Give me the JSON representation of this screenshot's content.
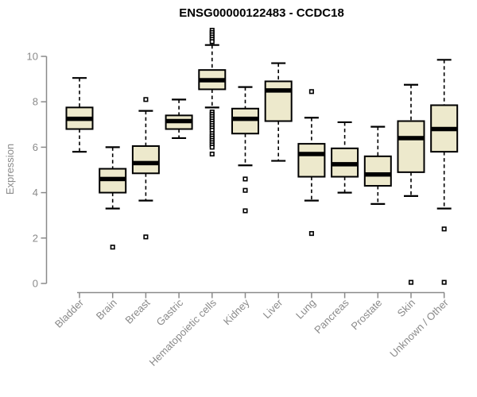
{
  "title": "ENSG00000122483 - CCDC18",
  "chart_data": {
    "type": "box",
    "title": "ENSG00000122483 - CCDC18",
    "xlabel": "",
    "ylabel": "Expression",
    "ylim": [
      0,
      10
    ],
    "yticks": [
      0,
      2,
      4,
      6,
      8,
      10
    ],
    "grid": false,
    "legend": "none",
    "categories": [
      "Bladder",
      "Brain",
      "Breast",
      "Gastric",
      "Hematopoietic cells",
      "Kidney",
      "Liver",
      "Lung",
      "Pancreas",
      "Prostate",
      "Skin",
      "Unknown / Other"
    ],
    "series": [
      {
        "name": "Bladder",
        "whisker_low": 5.8,
        "q1": 6.8,
        "median": 7.25,
        "q3": 7.75,
        "whisker_high": 9.05,
        "outliers": []
      },
      {
        "name": "Brain",
        "whisker_low": 3.3,
        "q1": 4.0,
        "median": 4.6,
        "q3": 5.05,
        "whisker_high": 6.0,
        "outliers": [
          1.6
        ]
      },
      {
        "name": "Breast",
        "whisker_low": 3.65,
        "q1": 4.85,
        "median": 5.3,
        "q3": 6.05,
        "whisker_high": 7.6,
        "outliers": [
          8.1,
          2.05
        ]
      },
      {
        "name": "Gastric",
        "whisker_low": 6.4,
        "q1": 6.8,
        "median": 7.15,
        "q3": 7.4,
        "whisker_high": 8.1,
        "outliers": []
      },
      {
        "name": "Hematopoietic cells",
        "whisker_low": 7.75,
        "q1": 8.55,
        "median": 8.95,
        "q3": 9.4,
        "whisker_high": 10.5,
        "outliers": [
          11.15,
          11.05,
          10.95,
          10.85,
          10.75,
          10.65,
          7.55,
          7.45,
          7.35,
          7.25,
          7.15,
          7.05,
          6.95,
          6.85,
          6.75,
          6.6,
          6.5,
          6.4,
          6.3,
          6.2,
          6.1,
          6.0,
          5.7
        ]
      },
      {
        "name": "Kidney",
        "whisker_low": 5.2,
        "q1": 6.6,
        "median": 7.25,
        "q3": 7.7,
        "whisker_high": 8.65,
        "outliers": [
          4.6,
          4.1,
          3.2
        ]
      },
      {
        "name": "Liver",
        "whisker_low": 5.4,
        "q1": 7.15,
        "median": 8.5,
        "q3": 8.9,
        "whisker_high": 9.7,
        "outliers": []
      },
      {
        "name": "Lung",
        "whisker_low": 3.65,
        "q1": 4.7,
        "median": 5.7,
        "q3": 6.15,
        "whisker_high": 7.3,
        "outliers": [
          8.45,
          2.2
        ]
      },
      {
        "name": "Pancreas",
        "whisker_low": 4.0,
        "q1": 4.7,
        "median": 5.25,
        "q3": 5.95,
        "whisker_high": 7.1,
        "outliers": []
      },
      {
        "name": "Prostate",
        "whisker_low": 3.5,
        "q1": 4.3,
        "median": 4.8,
        "q3": 5.6,
        "whisker_high": 6.9,
        "outliers": []
      },
      {
        "name": "Skin",
        "whisker_low": 3.85,
        "q1": 4.9,
        "median": 6.4,
        "q3": 7.15,
        "whisker_high": 8.75,
        "outliers": [
          0.05
        ]
      },
      {
        "name": "Unknown / Other",
        "whisker_low": 3.3,
        "q1": 5.8,
        "median": 6.8,
        "q3": 7.85,
        "whisker_high": 9.85,
        "outliers": [
          2.4,
          0.05
        ]
      }
    ],
    "colors": {
      "box_fill": "#ede9cc",
      "box_border": "#000000",
      "median": "#000000",
      "whisker": "#000000",
      "outlier": "#000000",
      "axis": "#8a8a8a",
      "tick_label": "#8a8a8a",
      "title": "#000000"
    }
  }
}
